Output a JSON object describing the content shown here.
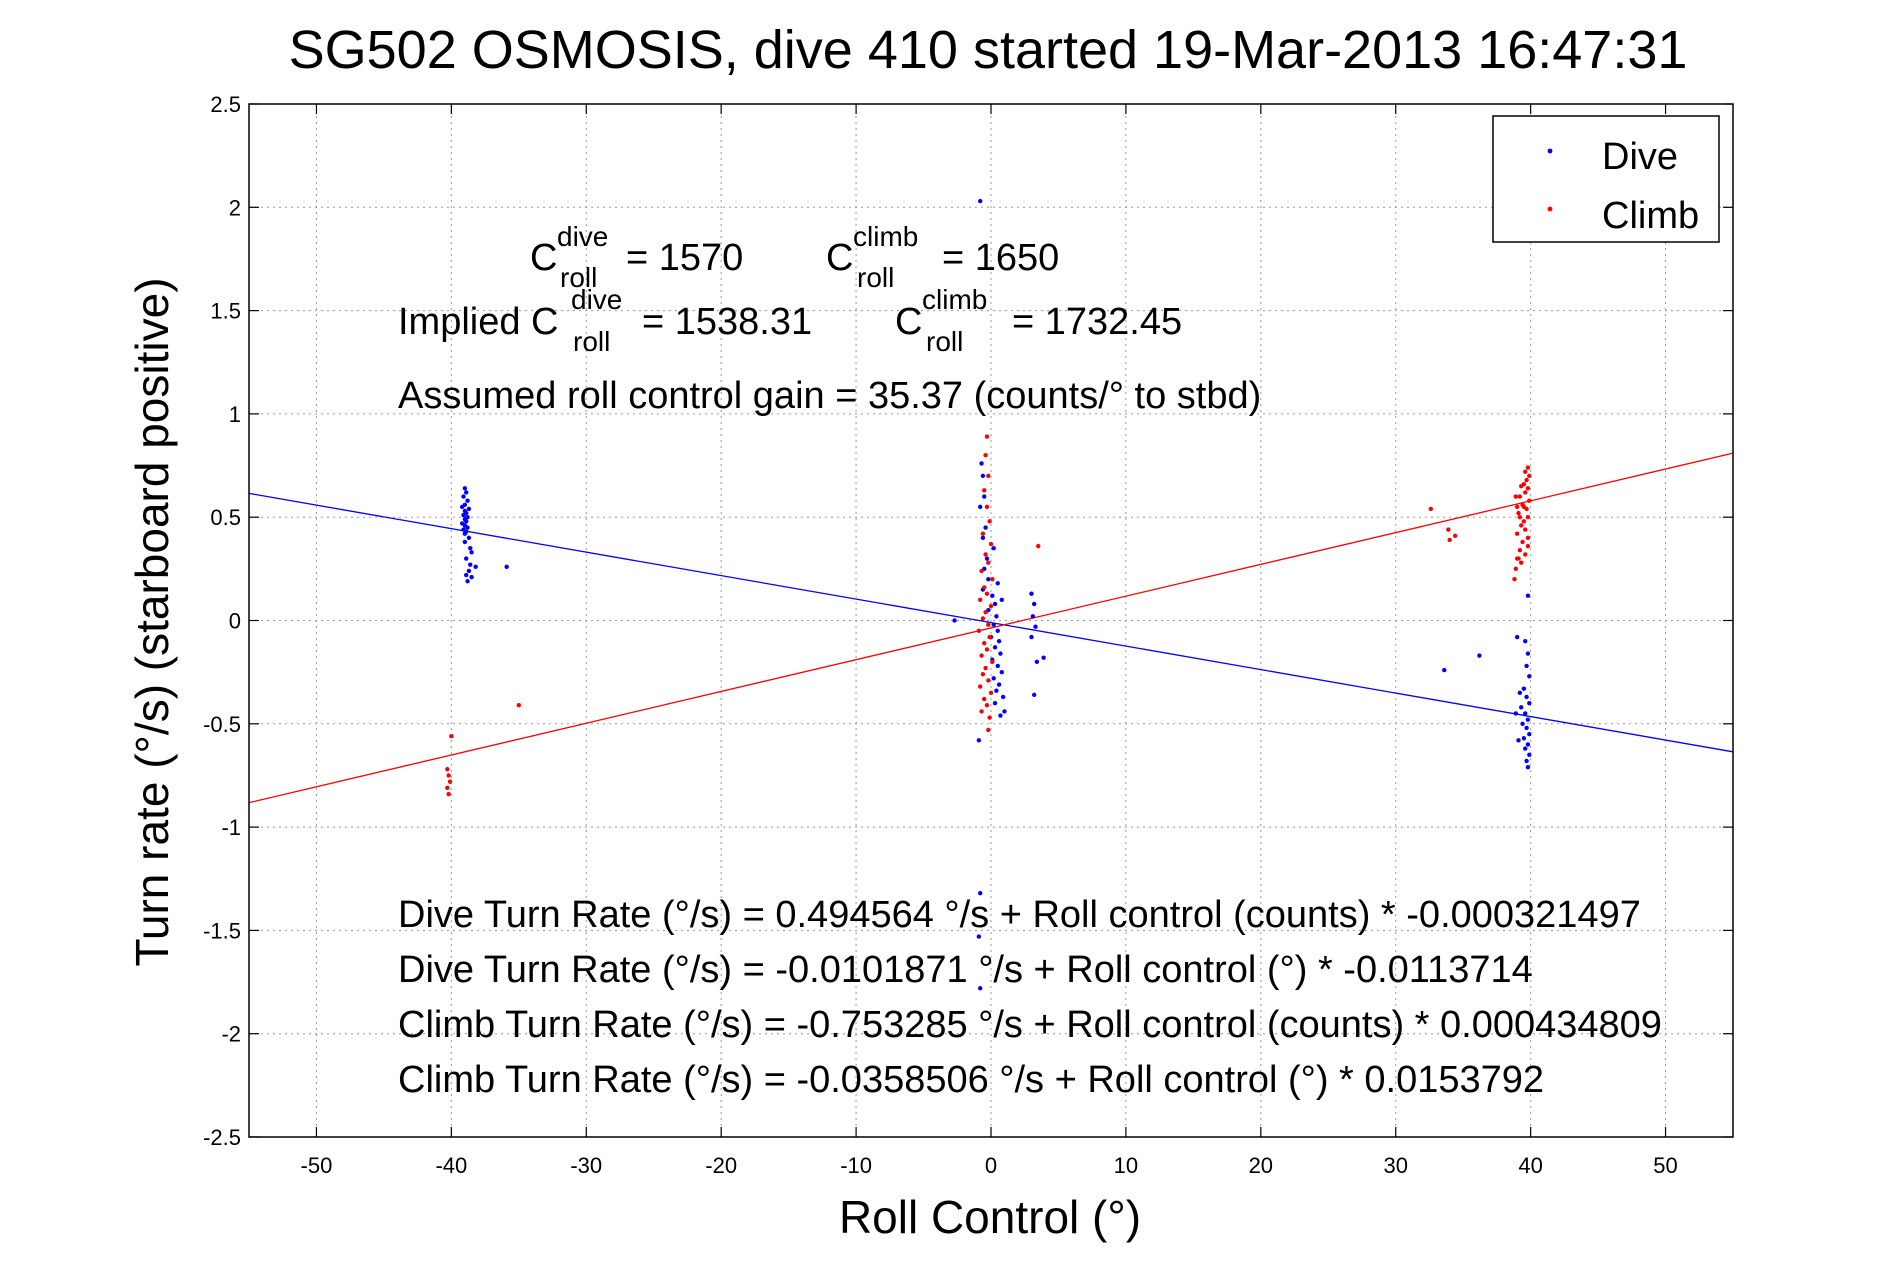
{
  "chart_data": {
    "type": "scatter",
    "title": "SG502 OSMOSIS, dive 410 started 19-Mar-2013 16:47:31",
    "xlabel": "Roll Control (°)",
    "ylabel": "Turn rate (°/s) (starboard positive)",
    "xlim": [
      -55,
      55
    ],
    "ylim": [
      -2.5,
      2.5
    ],
    "xticks": [
      -50,
      -40,
      -30,
      -20,
      -10,
      0,
      10,
      20,
      30,
      40,
      50
    ],
    "yticks": [
      -2.5,
      -2,
      -1.5,
      -1,
      -0.5,
      0,
      0.5,
      1,
      1.5,
      2,
      2.5
    ],
    "grid": true,
    "legend_position": "top-right",
    "series": [
      {
        "name": "Dive",
        "color": "#0000ff",
        "marker": "dot",
        "points": [
          [
            -39.0,
            0.64
          ],
          [
            -38.9,
            0.62
          ],
          [
            -39.1,
            0.6
          ],
          [
            -38.8,
            0.58
          ],
          [
            -39.0,
            0.56
          ],
          [
            -39.2,
            0.55
          ],
          [
            -38.7,
            0.54
          ],
          [
            -39.0,
            0.53
          ],
          [
            -38.9,
            0.52
          ],
          [
            -39.1,
            0.51
          ],
          [
            -38.8,
            0.5
          ],
          [
            -39.0,
            0.49
          ],
          [
            -38.9,
            0.48
          ],
          [
            -39.2,
            0.47
          ],
          [
            -39.0,
            0.46
          ],
          [
            -38.8,
            0.45
          ],
          [
            -39.1,
            0.44
          ],
          [
            -38.9,
            0.43
          ],
          [
            -39.0,
            0.42
          ],
          [
            -38.7,
            0.4
          ],
          [
            -39.0,
            0.38
          ],
          [
            -38.6,
            0.35
          ],
          [
            -38.5,
            0.33
          ],
          [
            -38.9,
            0.3
          ],
          [
            -38.6,
            0.27
          ],
          [
            -38.2,
            0.26
          ],
          [
            -38.7,
            0.24
          ],
          [
            -38.9,
            0.22
          ],
          [
            -38.5,
            0.21
          ],
          [
            -38.8,
            0.19
          ],
          [
            -35.9,
            0.26
          ],
          [
            -0.8,
            2.03
          ],
          [
            -0.7,
            0.76
          ],
          [
            -0.6,
            0.7
          ],
          [
            -0.5,
            0.6
          ],
          [
            -0.8,
            0.55
          ],
          [
            -0.4,
            0.45
          ],
          [
            -0.6,
            0.4
          ],
          [
            -0.3,
            0.3
          ],
          [
            -0.5,
            0.25
          ],
          [
            -0.2,
            0.2
          ],
          [
            -0.6,
            0.15
          ],
          [
            0.1,
            0.12
          ],
          [
            0.3,
            0.08
          ],
          [
            -0.2,
            0.05
          ],
          [
            0.4,
            0.02
          ],
          [
            0.2,
            -0.02
          ],
          [
            0.5,
            -0.05
          ],
          [
            0.0,
            -0.08
          ],
          [
            0.6,
            -0.1
          ],
          [
            0.3,
            -0.13
          ],
          [
            0.7,
            -0.16
          ],
          [
            0.1,
            -0.19
          ],
          [
            0.5,
            -0.22
          ],
          [
            0.8,
            -0.25
          ],
          [
            0.2,
            -0.28
          ],
          [
            0.6,
            -0.31
          ],
          [
            0.4,
            -0.34
          ],
          [
            0.9,
            -0.37
          ],
          [
            0.3,
            -0.4
          ],
          [
            1.0,
            -0.44
          ],
          [
            -0.9,
            -0.58
          ],
          [
            0.7,
            -0.46
          ],
          [
            0.2,
            0.35
          ],
          [
            0.5,
            0.18
          ],
          [
            0.8,
            0.1
          ],
          [
            -2.7,
            0.0
          ],
          [
            -0.8,
            -1.32
          ],
          [
            -0.9,
            -1.53
          ],
          [
            -0.8,
            -1.78
          ],
          [
            3.0,
            0.13
          ],
          [
            3.2,
            0.08
          ],
          [
            3.1,
            0.02
          ],
          [
            3.3,
            -0.03
          ],
          [
            3.0,
            -0.08
          ],
          [
            3.4,
            -0.2
          ],
          [
            3.9,
            -0.18
          ],
          [
            3.2,
            -0.36
          ],
          [
            39.8,
            0.12
          ],
          [
            39.6,
            -0.1
          ],
          [
            39.8,
            -0.16
          ],
          [
            39.7,
            -0.22
          ],
          [
            39.9,
            -0.27
          ],
          [
            39.5,
            -0.33
          ],
          [
            39.7,
            -0.37
          ],
          [
            39.9,
            -0.4
          ],
          [
            39.3,
            -0.42
          ],
          [
            39.6,
            -0.45
          ],
          [
            39.8,
            -0.48
          ],
          [
            39.4,
            -0.5
          ],
          [
            39.7,
            -0.52
          ],
          [
            39.9,
            -0.55
          ],
          [
            39.5,
            -0.57
          ],
          [
            39.8,
            -0.6
          ],
          [
            39.6,
            -0.62
          ],
          [
            39.9,
            -0.65
          ],
          [
            39.7,
            -0.68
          ],
          [
            39.8,
            -0.71
          ],
          [
            39.0,
            -0.08
          ],
          [
            39.2,
            -0.35
          ],
          [
            38.9,
            -0.45
          ],
          [
            39.1,
            -0.58
          ],
          [
            33.6,
            -0.24
          ],
          [
            36.2,
            -0.17
          ]
        ]
      },
      {
        "name": "Climb",
        "color": "#ff0000",
        "marker": "dot",
        "points": [
          [
            -40.0,
            -0.56
          ],
          [
            -40.3,
            -0.72
          ],
          [
            -40.2,
            -0.75
          ],
          [
            -40.1,
            -0.78
          ],
          [
            -40.3,
            -0.81
          ],
          [
            -40.2,
            -0.84
          ],
          [
            -35.0,
            -0.41
          ],
          [
            -0.3,
            0.89
          ],
          [
            -0.4,
            0.8
          ],
          [
            -0.2,
            0.7
          ],
          [
            -0.5,
            0.63
          ],
          [
            -0.3,
            0.55
          ],
          [
            -0.1,
            0.48
          ],
          [
            -0.6,
            0.42
          ],
          [
            0.0,
            0.37
          ],
          [
            -0.4,
            0.32
          ],
          [
            -0.2,
            0.28
          ],
          [
            -0.7,
            0.24
          ],
          [
            0.1,
            0.2
          ],
          [
            -0.5,
            0.16
          ],
          [
            -0.3,
            0.13
          ],
          [
            -0.8,
            0.1
          ],
          [
            0.0,
            0.07
          ],
          [
            -0.4,
            0.04
          ],
          [
            -0.6,
            0.01
          ],
          [
            -0.2,
            -0.02
          ],
          [
            -0.9,
            -0.05
          ],
          [
            -0.1,
            -0.08
          ],
          [
            -0.5,
            -0.11
          ],
          [
            -0.3,
            -0.14
          ],
          [
            -0.7,
            -0.17
          ],
          [
            0.1,
            -0.2
          ],
          [
            -0.4,
            -0.23
          ],
          [
            -0.6,
            -0.26
          ],
          [
            -0.2,
            -0.29
          ],
          [
            -0.8,
            -0.32
          ],
          [
            0.0,
            -0.35
          ],
          [
            -0.5,
            -0.38
          ],
          [
            -0.3,
            -0.41
          ],
          [
            -0.7,
            -0.44
          ],
          [
            -0.1,
            -0.47
          ],
          [
            -0.2,
            -0.53
          ],
          [
            3.5,
            0.36
          ],
          [
            32.6,
            0.54
          ],
          [
            33.9,
            0.44
          ],
          [
            34.4,
            0.41
          ],
          [
            34.0,
            0.39
          ],
          [
            39.8,
            0.74
          ],
          [
            39.6,
            0.72
          ],
          [
            39.9,
            0.7
          ],
          [
            39.7,
            0.68
          ],
          [
            39.5,
            0.66
          ],
          [
            39.8,
            0.64
          ],
          [
            39.6,
            0.62
          ],
          [
            39.2,
            0.6
          ],
          [
            39.9,
            0.58
          ],
          [
            39.4,
            0.56
          ],
          [
            39.7,
            0.54
          ],
          [
            39.1,
            0.52
          ],
          [
            39.8,
            0.5
          ],
          [
            39.5,
            0.48
          ],
          [
            39.3,
            0.46
          ],
          [
            39.6,
            0.44
          ],
          [
            39.0,
            0.42
          ],
          [
            39.4,
            0.38
          ],
          [
            39.8,
            0.36
          ],
          [
            39.2,
            0.34
          ],
          [
            39.6,
            0.32
          ],
          [
            39.0,
            0.3
          ],
          [
            39.3,
            0.28
          ],
          [
            38.9,
            0.25
          ],
          [
            39.1,
            0.3
          ],
          [
            39.8,
            0.4
          ],
          [
            38.8,
            0.2
          ],
          [
            39.0,
            0.55
          ],
          [
            38.9,
            0.6
          ],
          [
            39.3,
            0.65
          ],
          [
            39.2,
            0.5
          ],
          [
            39.5,
            0.55
          ]
        ]
      }
    ],
    "fit_lines": [
      {
        "series": "Dive",
        "color": "#0000ff",
        "intercept": -0.0101871,
        "slope": -0.0113714
      },
      {
        "series": "Climb",
        "color": "#ff0000",
        "intercept": -0.0358506,
        "slope": 0.0153792
      }
    ],
    "annotations": {
      "c_roll_dive": {
        "base": "C",
        "sup": "dive",
        "sub": "roll",
        "value": "= 1570"
      },
      "c_roll_climb": {
        "base": "C",
        "sup": "climb",
        "sub": "roll",
        "value": "= 1650"
      },
      "implied_prefix": "Implied C",
      "implied_dive": {
        "sup": "dive",
        "sub": "roll",
        "value": "= 1538.31"
      },
      "implied_climb": {
        "base": "C",
        "sup": "climb",
        "sub": "roll",
        "value": "= 1732.45"
      },
      "gain": "Assumed roll control gain = 35.37 (counts/° to stbd)",
      "equations": [
        "Dive Turn Rate (°/s) = 0.494564 °/s + Roll control (counts) * -0.000321497",
        "Dive Turn Rate (°/s) = -0.0101871 °/s + Roll control (°) * -0.0113714",
        "Climb Turn Rate (°/s) = -0.753285 °/s + Roll control (counts) * 0.000434809",
        "Climb Turn Rate (°/s) = -0.0358506 °/s + Roll control (°) * 0.0153792"
      ]
    }
  }
}
